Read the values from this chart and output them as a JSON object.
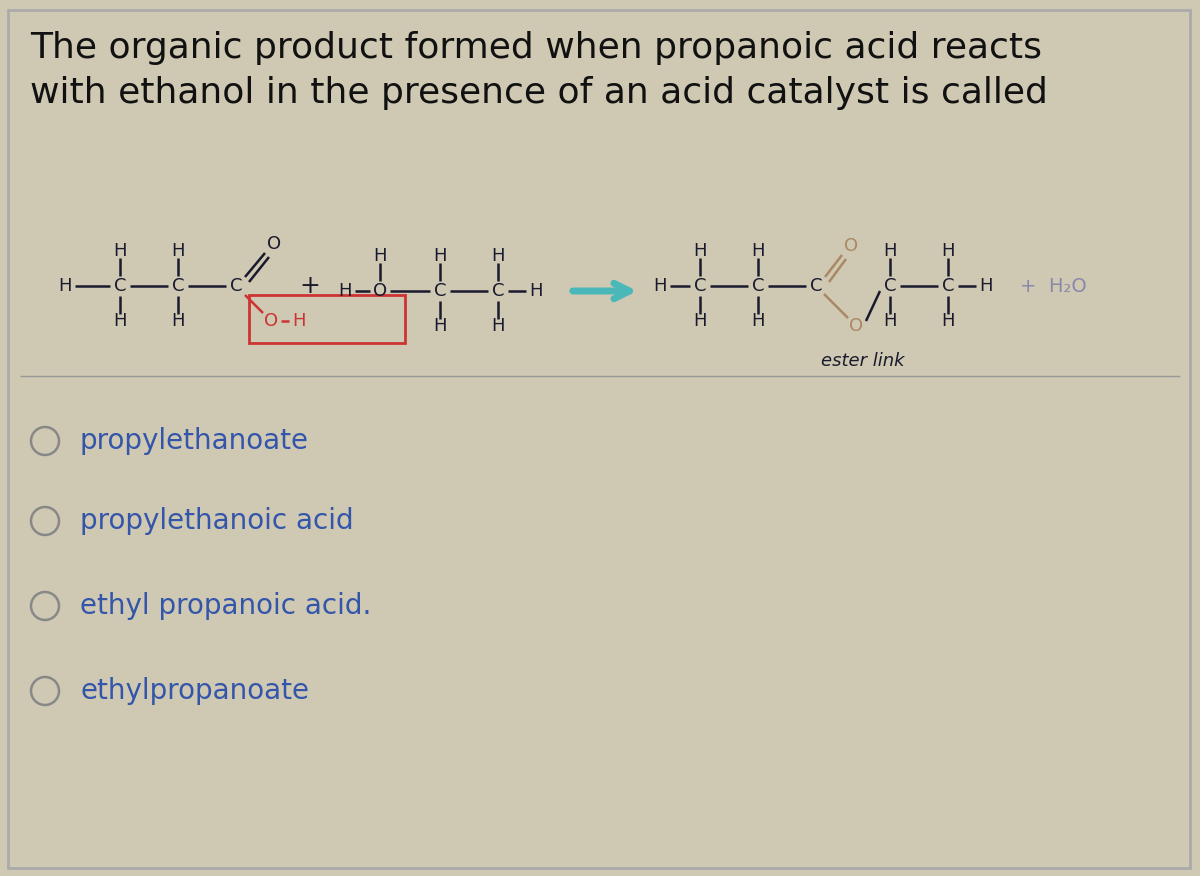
{
  "bg_color": "#cfc9b3",
  "title_line1": "The organic product formed when propanoic acid reacts",
  "title_line2": "with ethanol in the presence of an acid catalyst is called",
  "title_fontsize": 26,
  "title_color": "#111111",
  "chem_color": "#1a1a2e",
  "answer_options": [
    "propylethanoate",
    "propylethanoic acid",
    "ethyl propanoic acid.",
    "ethylpropanoate"
  ],
  "option_fontsize": 20,
  "option_color": "#3355aa",
  "ester_link_label": "ester link",
  "h2o_label": "H₂O",
  "arrow_color": "#4ab8b8",
  "red_box_color": "#cc3333",
  "oh_color": "#cc3333"
}
